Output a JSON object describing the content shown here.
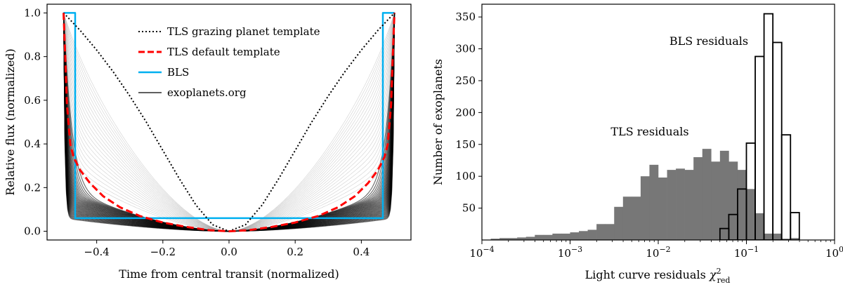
{
  "chart_data": [
    {
      "type": "line",
      "panel": "left",
      "xlabel": "Time from central transit (normalized)",
      "ylabel": "Relative flux (normalized)",
      "xlim": [
        -0.55,
        0.55
      ],
      "ylim": [
        -0.04,
        1.04
      ],
      "xticks": [
        -0.4,
        -0.2,
        0.0,
        0.2,
        0.4
      ],
      "xtick_labels": [
        "−0.4",
        "−0.2",
        "0.0",
        "0.2",
        "0.4"
      ],
      "yticks": [
        0.0,
        0.2,
        0.4,
        0.6,
        0.8,
        1.0
      ],
      "ytick_labels": [
        "0.0",
        "0.2",
        "0.4",
        "0.6",
        "0.8",
        "1.0"
      ],
      "legend_position": "top-center",
      "series": [
        {
          "name": "TLS grazing planet template",
          "style": "dotted",
          "color": "#000000",
          "x": [
            -0.5,
            -0.45,
            -0.4,
            -0.35,
            -0.3,
            -0.25,
            -0.2,
            -0.15,
            -0.1,
            -0.05,
            0.0,
            0.05,
            0.1,
            0.15,
            0.2,
            0.25,
            0.3,
            0.35,
            0.4,
            0.45,
            0.5
          ],
          "y": [
            1.0,
            0.92,
            0.83,
            0.73,
            0.62,
            0.5,
            0.37,
            0.24,
            0.12,
            0.03,
            0.0,
            0.03,
            0.12,
            0.24,
            0.37,
            0.5,
            0.62,
            0.73,
            0.83,
            0.92,
            1.0
          ]
        },
        {
          "name": "TLS default template",
          "style": "dashed",
          "color": "#ff0000",
          "x": [
            -0.5,
            -0.495,
            -0.49,
            -0.48,
            -0.47,
            -0.45,
            -0.42,
            -0.38,
            -0.33,
            -0.27,
            -0.2,
            -0.13,
            -0.06,
            0.0,
            0.06,
            0.13,
            0.2,
            0.27,
            0.33,
            0.38,
            0.42,
            0.45,
            0.47,
            0.48,
            0.49,
            0.495,
            0.5
          ],
          "y": [
            1.0,
            0.8,
            0.58,
            0.4,
            0.34,
            0.28,
            0.22,
            0.16,
            0.11,
            0.07,
            0.04,
            0.02,
            0.005,
            0.0,
            0.005,
            0.02,
            0.04,
            0.07,
            0.11,
            0.16,
            0.22,
            0.28,
            0.34,
            0.4,
            0.58,
            0.8,
            1.0
          ]
        },
        {
          "name": "BLS",
          "style": "solid",
          "color": "#00b0f0",
          "x": [
            -0.5,
            -0.465,
            -0.465,
            0.465,
            0.465,
            0.5
          ],
          "y": [
            1.0,
            1.0,
            0.06,
            0.06,
            1.0,
            1.0
          ]
        },
        {
          "name": "exoplanets.org",
          "style": "solid",
          "color": "#000000",
          "note": "bundle of many thin light-curve models"
        }
      ]
    },
    {
      "type": "histogram",
      "panel": "right",
      "xscale": "log",
      "xlabel": "Light curve residuals χ²red",
      "xlabel_main": "Light curve residuals ",
      "xlabel_symbol": "χ",
      "xlabel_sup": "2",
      "xlabel_sub": "red",
      "ylabel": "Number of exoplanets",
      "xlim": [
        0.0001,
        1
      ],
      "ylim": [
        0,
        370
      ],
      "xtick_labels": [
        {
          "base": "10",
          "exp": "−4"
        },
        {
          "base": "10",
          "exp": "−3"
        },
        {
          "base": "10",
          "exp": "−2"
        },
        {
          "base": "10",
          "exp": "−1"
        },
        {
          "base": "10",
          "exp": "0"
        }
      ],
      "yticks": [
        50,
        100,
        150,
        200,
        250,
        300,
        350
      ],
      "ytick_labels": [
        "50",
        "100",
        "150",
        "200",
        "250",
        "300",
        "350"
      ],
      "annotations": [
        "TLS residuals",
        "BLS residuals"
      ],
      "series": [
        {
          "name": "TLS residuals",
          "style": "filled",
          "color": "#777777",
          "bin_width_log10": 0.1,
          "bin_start_log10": -3.9,
          "values": [
            2,
            3,
            3,
            4,
            5,
            8,
            8,
            10,
            10,
            12,
            14,
            16,
            25,
            25,
            52,
            68,
            68,
            100,
            118,
            98,
            110,
            112,
            110,
            130,
            143,
            123,
            140,
            123,
            110,
            80,
            42,
            10,
            10,
            2,
            3
          ]
        },
        {
          "name": "BLS residuals",
          "style": "outline",
          "color": "#000000",
          "bin_width_log10": 0.1,
          "bin_start_log10": -1.3,
          "values": [
            18,
            40,
            80,
            152,
            288,
            355,
            310,
            165,
            43
          ]
        }
      ]
    }
  ]
}
